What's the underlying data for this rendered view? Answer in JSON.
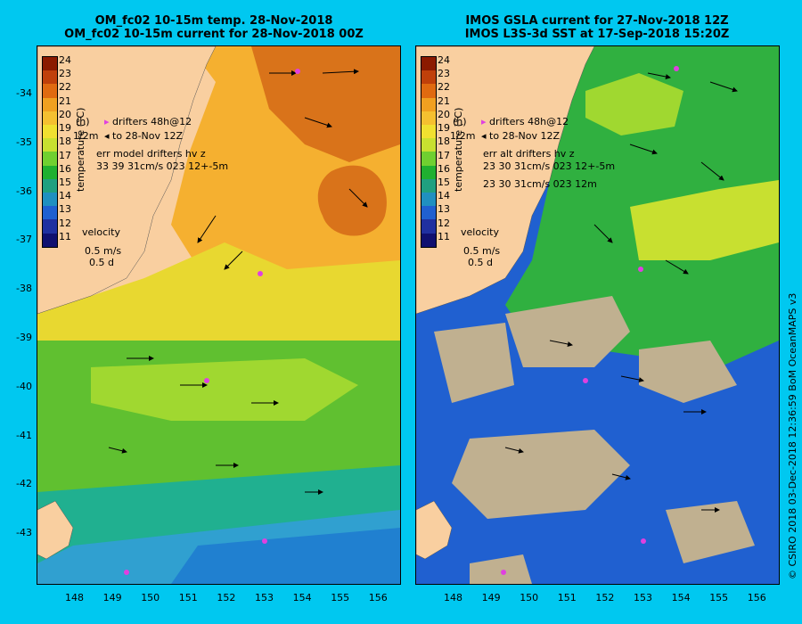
{
  "left": {
    "title1": "OM_fc02 10-15m temp. 28-Nov-2018",
    "title2": "OM_fc02 10-15m current for 28-Nov-2018 00Z",
    "legend_drifters": "drifters 48h@12",
    "legend_to": "to 28-Nov 12Z",
    "err_label": "err model drifters hv z",
    "err_vals": "33 39 31cm/s 023 12+-5m",
    "velocity_label": "velocity",
    "velocity_scale": "0.5 m/s",
    "velocity_time": "0.5 d",
    "side_h": "(h)",
    "side_z": "1/2m"
  },
  "right": {
    "title1": "IMOS GSLA current for 27-Nov-2018 12Z",
    "title2": "IMOS L3S-3d SST at 17-Sep-2018 15:20Z",
    "legend_drifters": "drifters 48h@12",
    "legend_to": "to 28-Nov 12Z",
    "err_label": "err alt drifters hv z",
    "err_vals": "23 30 31cm/s 023 12+-5m",
    "err_vals2": "23 30 31cm/s 023 12m",
    "velocity_label": "velocity",
    "velocity_scale": "0.5 m/s",
    "velocity_time": "0.5 d",
    "side_h": "(h)",
    "side_z": "1/2m"
  },
  "colorbar": {
    "label": "temperature (°C)",
    "ticks": [
      "24",
      "23",
      "22",
      "21",
      "20",
      "19",
      "18",
      "17",
      "16",
      "15",
      "14",
      "13",
      "12",
      "11"
    ],
    "colors": [
      "#8b1a00",
      "#c0400a",
      "#e06a10",
      "#f0a020",
      "#f5c030",
      "#f0e030",
      "#c8e030",
      "#70d030",
      "#20b030",
      "#20a080",
      "#2090c0",
      "#2060d0",
      "#2030a0",
      "#101070"
    ]
  },
  "axes": {
    "x_ticks": [
      "148",
      "149",
      "150",
      "151",
      "152",
      "153",
      "154",
      "155",
      "156"
    ],
    "y_ticks": [
      "-34",
      "-35",
      "-36",
      "-37",
      "-38",
      "-39",
      "-40",
      "-41",
      "-42",
      "-43"
    ]
  },
  "credit": "© CSIRO 2018   03-Dec-2018 12:36:59 BoM OceanMAPS v3"
}
